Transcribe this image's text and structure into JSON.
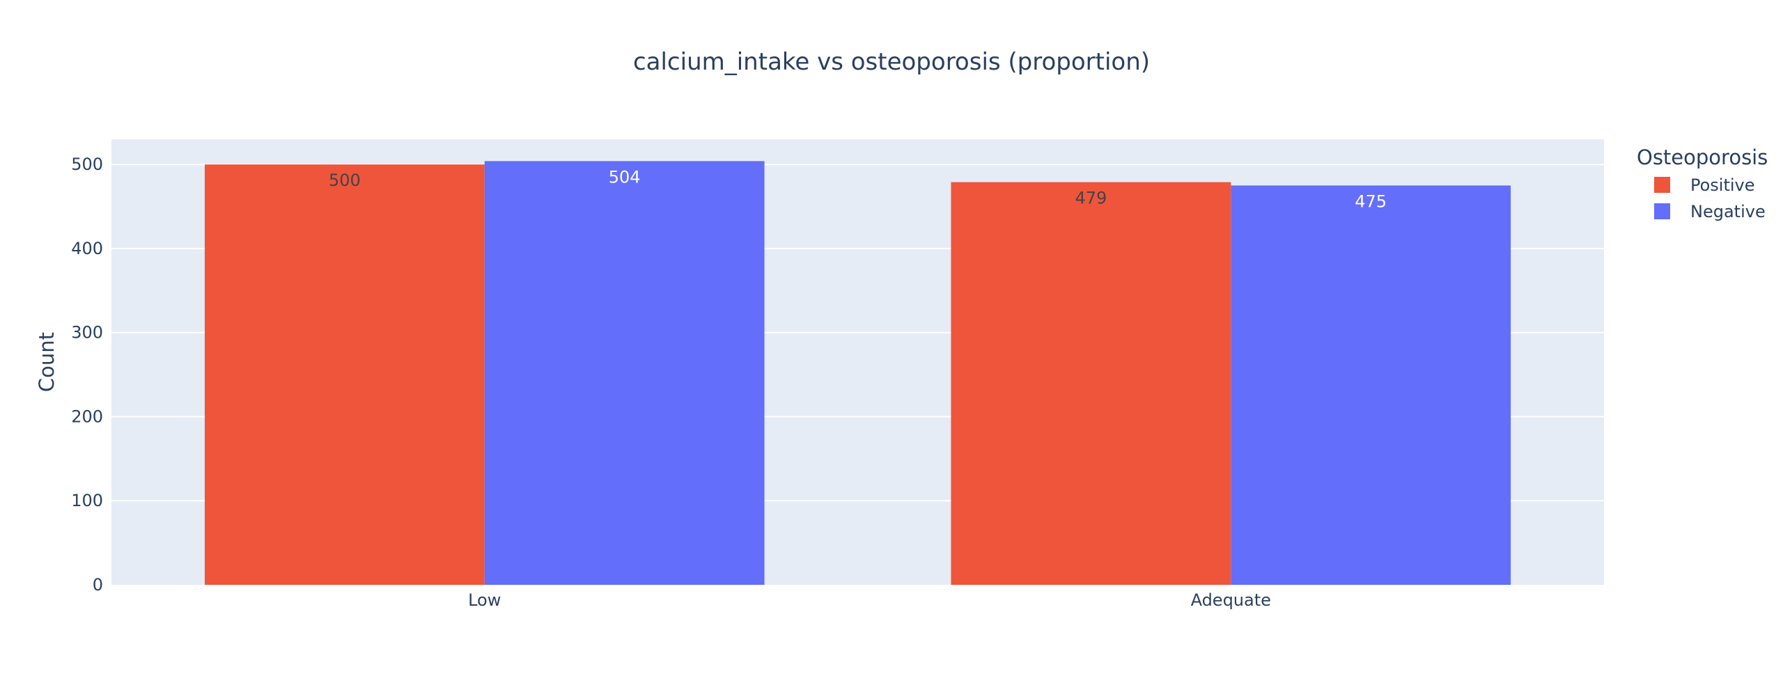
{
  "chart_data": {
    "type": "bar",
    "title": "calcium_intake vs osteoporosis (proportion)",
    "xlabel": "",
    "ylabel": "Count",
    "categories": [
      "Low",
      "Adequate"
    ],
    "series": [
      {
        "name": "Positive",
        "values": [
          500,
          479
        ],
        "color": "#EF553B",
        "label_color": "#444444"
      },
      {
        "name": "Negative",
        "values": [
          504,
          475
        ],
        "color": "#636EFA",
        "label_color": "#ffffff"
      }
    ],
    "ylim": [
      0,
      530
    ],
    "yticks": [
      0,
      100,
      200,
      300,
      400,
      500
    ],
    "grid": true,
    "legend": {
      "title": "Osteoporosis",
      "placement": "right"
    },
    "colors": {
      "plot_bg": "#E5ECF6",
      "grid": "#ffffff",
      "text": "#2a3f5f"
    }
  }
}
